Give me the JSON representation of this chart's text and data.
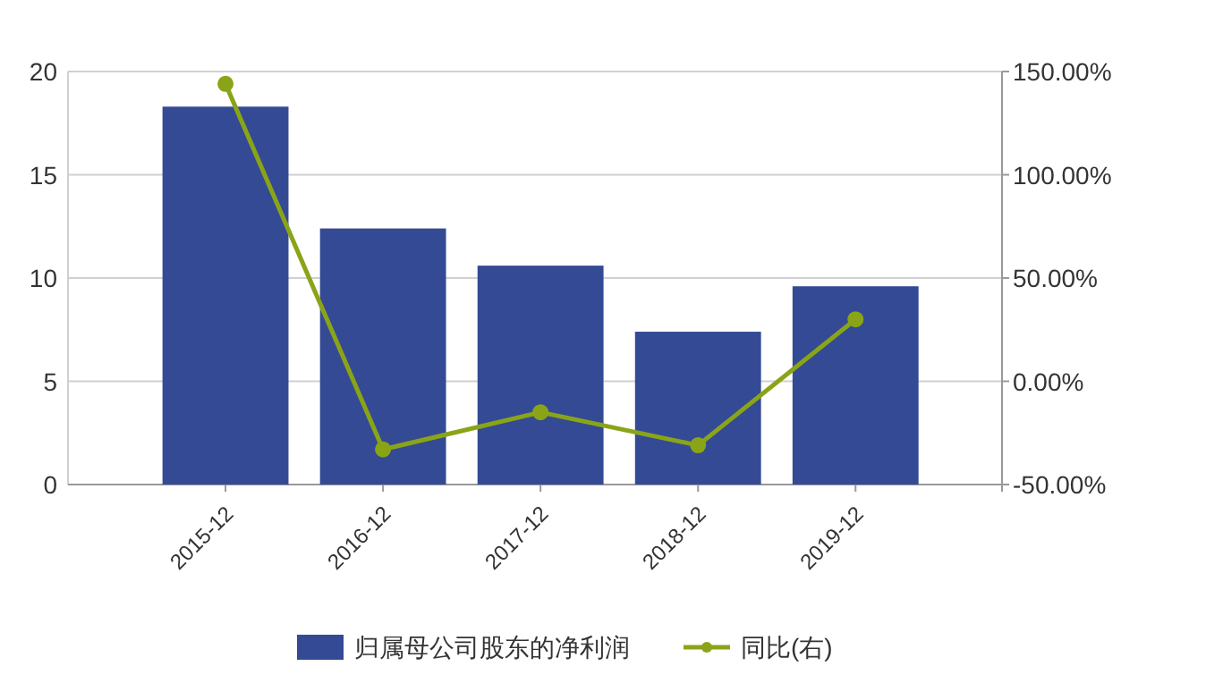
{
  "chart_data": {
    "type": "bar",
    "categories": [
      "2015-12",
      "2016-12",
      "2017-12",
      "2018-12",
      "2019-12"
    ],
    "series": [
      {
        "name": "归属母公司股东的净利润",
        "color": "#344a94",
        "values": [
          18.3,
          12.4,
          10.6,
          7.4,
          9.6
        ]
      },
      {
        "name": "同比(右)",
        "type": "line",
        "axis": "y2",
        "color": "#8aa418",
        "marker": "circle",
        "values": [
          144,
          -33,
          -15,
          -31,
          30
        ]
      }
    ],
    "ylim": [
      0,
      20
    ],
    "yticks": [
      0,
      5,
      10,
      15,
      20
    ],
    "y2lim": [
      -50,
      150
    ],
    "y2ticks": [
      {
        "value": -50,
        "label": "-50.00%"
      },
      {
        "value": 0,
        "label": "0.00%"
      },
      {
        "value": 50,
        "label": "50.00%"
      },
      {
        "value": 100,
        "label": "100.00%"
      },
      {
        "value": 150,
        "label": "150.00%"
      }
    ],
    "grid": "y",
    "legend": "bottom"
  }
}
